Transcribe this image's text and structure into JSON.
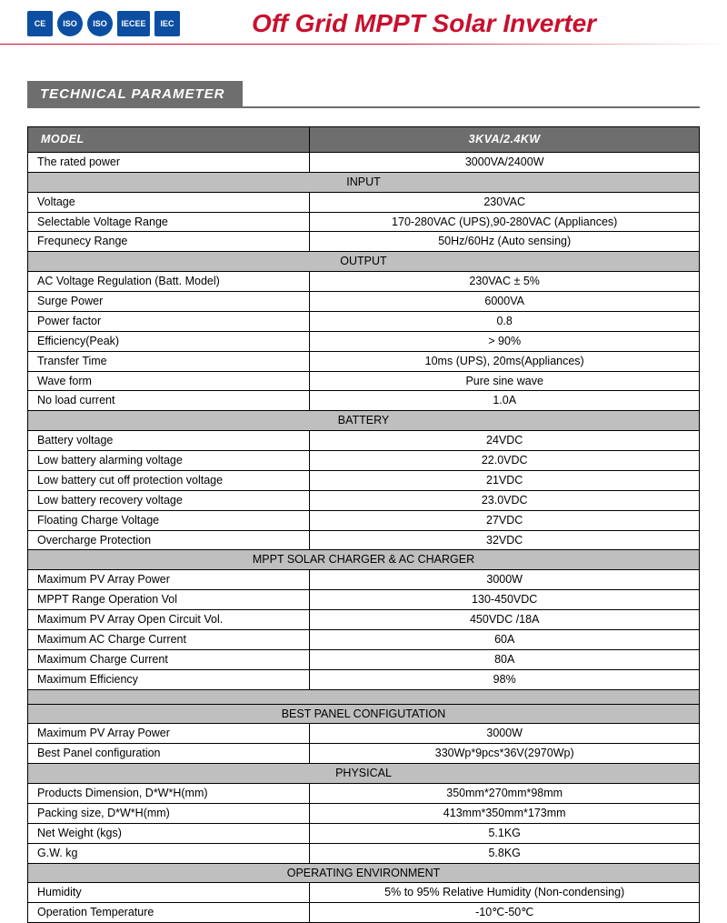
{
  "header": {
    "badges": [
      "CE",
      "ISO",
      "ISO",
      "IECEE",
      "IEC"
    ],
    "title": "Off Grid MPPT Solar Inverter"
  },
  "section_title": "TECHNICAL PARAMETER",
  "colors": {
    "brand_red": "#c8102e",
    "header_grey": "#6e6e6e",
    "section_grey": "#bfbfbf",
    "badge_blue": "#0b4ea2"
  },
  "table": {
    "header": {
      "label": "MODEL",
      "value": "3KVA/2.4KW"
    },
    "sections": [
      {
        "title": null,
        "rows": [
          {
            "label": "The rated power",
            "value": "3000VA/2400W"
          }
        ]
      },
      {
        "title": "INPUT",
        "rows": [
          {
            "label": "Voltage",
            "value": "230VAC"
          },
          {
            "label": "Selectable Voltage Range",
            "value": "170-280VAC (UPS),90-280VAC (Appliances)"
          },
          {
            "label": "Frequnecy Range",
            "value": "50Hz/60Hz (Auto sensing)"
          }
        ]
      },
      {
        "title": "OUTPUT",
        "rows": [
          {
            "label": "AC Voltage Regulation (Batt. Model)",
            "value": "230VAC ± 5%"
          },
          {
            "label": "Surge Power",
            "value": "6000VA"
          },
          {
            "label": "Power factor",
            "value": "0.8"
          },
          {
            "label": "Efficiency(Peak)",
            "value": "> 90%"
          },
          {
            "label": "Transfer Time",
            "value": "10ms (UPS), 20ms(Appliances)"
          },
          {
            "label": "Wave form",
            "value": "Pure sine wave"
          },
          {
            "label": "No load current",
            "value": "1.0A"
          }
        ]
      },
      {
        "title": "BATTERY",
        "rows": [
          {
            "label": "Battery voltage",
            "value": "24VDC"
          },
          {
            "label": "Low battery alarming voltage",
            "value": "22.0VDC"
          },
          {
            "label": "Low battery cut off protection voltage",
            "value": "21VDC"
          },
          {
            "label": "Low battery recovery voltage",
            "value": "23.0VDC"
          },
          {
            "label": "Floating Charge Voltage",
            "value": "27VDC"
          },
          {
            "label": "Overcharge Protection",
            "value": "32VDC"
          }
        ]
      },
      {
        "title": "MPPT SOLAR CHARGER & AC CHARGER",
        "rows": [
          {
            "label": "Maximum PV Array Power",
            "value": "3000W"
          },
          {
            "label": "MPPT Range Operation Vol",
            "value": "130-450VDC"
          },
          {
            "label": "Maximum PV Array Open Circuit Vol.",
            "value": "450VDC /18A"
          },
          {
            "label": "Maximum AC Charge Current",
            "value": "60A"
          },
          {
            "label": "Maximum Charge Current",
            "value": "80A"
          },
          {
            "label": "Maximum Efficiency",
            "value": "98%"
          }
        ],
        "blank_after": true
      },
      {
        "title": "BEST PANEL CONFIGUTATION",
        "rows": [
          {
            "label": "Maximum PV Array Power",
            "value": "3000W"
          },
          {
            "label": "Best Panel configuration",
            "value": "330Wp*9pcs*36V(2970Wp)"
          }
        ]
      },
      {
        "title": "PHYSICAL",
        "rows": [
          {
            "label": "Products Dimension, D*W*H(mm)",
            "value": "350mm*270mm*98mm"
          },
          {
            "label": "Packing size, D*W*H(mm)",
            "value": "413mm*350mm*173mm"
          },
          {
            "label": "Net Weight (kgs)",
            "value": "5.1KG"
          },
          {
            "label": "G.W. kg",
            "value": "5.8KG"
          }
        ]
      },
      {
        "title": "OPERATING ENVIRONMENT",
        "rows": [
          {
            "label": "Humidity",
            "value": "5% to 95% Relative Humidity (Non-condensing)"
          },
          {
            "label": "Operation Temperature",
            "value": "-10℃-50℃"
          }
        ]
      }
    ]
  }
}
